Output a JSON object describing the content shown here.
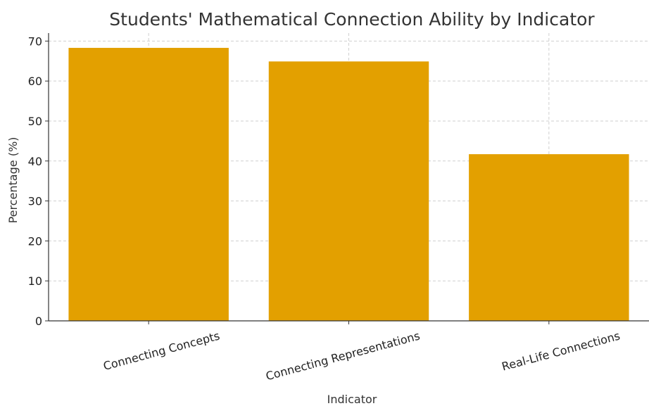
{
  "chart_data": {
    "type": "bar",
    "title": "Students' Mathematical Connection Ability by Indicator",
    "xlabel": "Indicator",
    "ylabel": "Percentage (%)",
    "categories": [
      "Connecting Concepts",
      "Connecting Representations",
      "Real-Life Connections"
    ],
    "values": [
      68.3,
      64.9,
      41.7
    ],
    "ylim": [
      0,
      72
    ],
    "yticks": [
      "0",
      "10",
      "20",
      "30",
      "40",
      "50",
      "60",
      "70"
    ],
    "grid": true,
    "bar_color": "#E3A000",
    "grid_color": "#cfcfcf"
  }
}
